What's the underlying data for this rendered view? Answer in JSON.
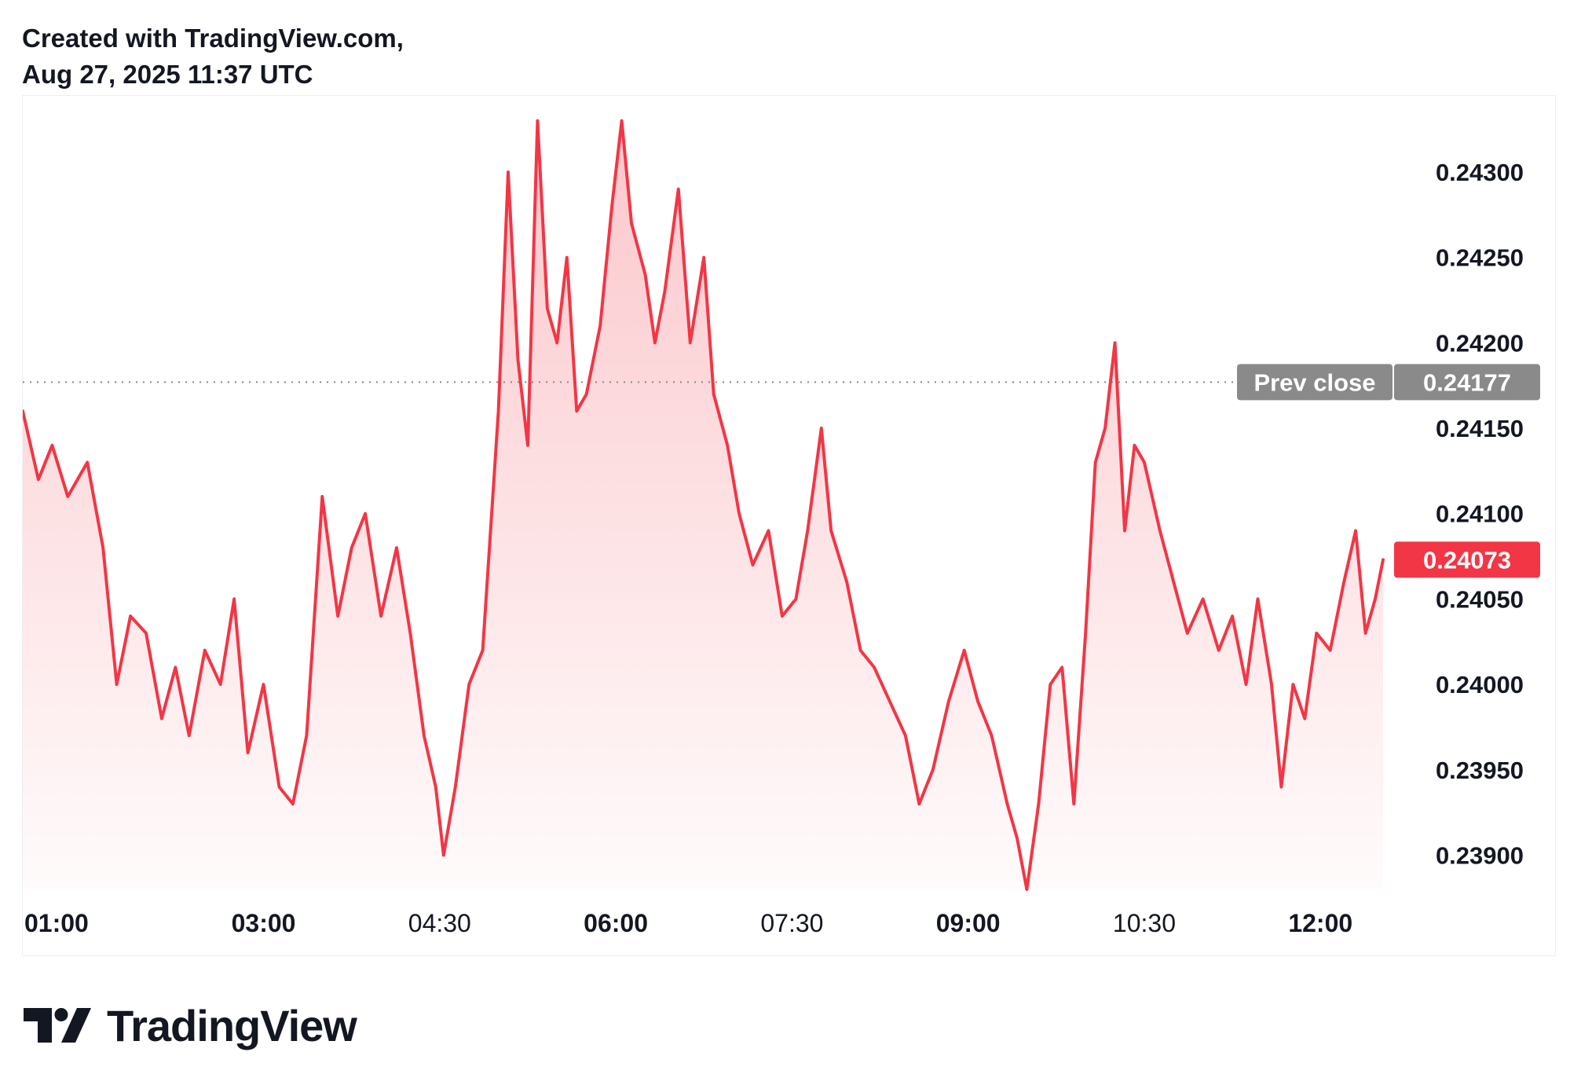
{
  "header": {
    "line1": "Created with TradingView.com,",
    "line2": "Aug 27, 2025 11:37 UTC"
  },
  "brand": {
    "name": "TradingView",
    "icon": "tradingview-logo-icon"
  },
  "colors": {
    "line": "#f23645",
    "prev_close_badge": "#8a8a8a",
    "last_price_badge": "#f23645",
    "text": "#131722"
  },
  "chart_data": {
    "type": "area",
    "x_ticks": [
      {
        "label": "01:00",
        "bold": true,
        "time": "01:00"
      },
      {
        "label": "03:00",
        "bold": true,
        "time": "03:00"
      },
      {
        "label": "04:30",
        "bold": false,
        "time": "04:30"
      },
      {
        "label": "06:00",
        "bold": true,
        "time": "06:00"
      },
      {
        "label": "07:30",
        "bold": false,
        "time": "07:30"
      },
      {
        "label": "09:00",
        "bold": true,
        "time": "09:00"
      },
      {
        "label": "10:30",
        "bold": false,
        "time": "10:30"
      },
      {
        "label": "12:00",
        "bold": true,
        "time": "12:00"
      }
    ],
    "y_ticks": [
      "0.23900",
      "0.23950",
      "0.24000",
      "0.24050",
      "0.24100",
      "0.24150",
      "0.24200",
      "0.24250",
      "0.24300"
    ],
    "ylim": [
      0.2388,
      0.2434
    ],
    "xlim": [
      "00:57",
      "12:32"
    ],
    "prev_close": {
      "label": "Prev close",
      "value": "0.24177"
    },
    "last_price": {
      "value": "0.24073"
    },
    "series": [
      {
        "points": [
          [
            "00:57",
            0.2416
          ],
          [
            "01:05",
            0.2412
          ],
          [
            "01:12",
            0.2414
          ],
          [
            "01:20",
            0.2411
          ],
          [
            "01:30",
            0.2413
          ],
          [
            "01:38",
            0.2408
          ],
          [
            "01:45",
            0.24
          ],
          [
            "01:52",
            0.2404
          ],
          [
            "02:00",
            0.2403
          ],
          [
            "02:08",
            0.2398
          ],
          [
            "02:15",
            0.2401
          ],
          [
            "02:22",
            0.2397
          ],
          [
            "02:30",
            0.2402
          ],
          [
            "02:38",
            0.24
          ],
          [
            "02:45",
            0.2405
          ],
          [
            "02:52",
            0.2396
          ],
          [
            "03:00",
            0.24
          ],
          [
            "03:08",
            0.2394
          ],
          [
            "03:15",
            0.2393
          ],
          [
            "03:22",
            0.2397
          ],
          [
            "03:30",
            0.2411
          ],
          [
            "03:38",
            0.2404
          ],
          [
            "03:45",
            0.2408
          ],
          [
            "03:52",
            0.241
          ],
          [
            "04:00",
            0.2404
          ],
          [
            "04:08",
            0.2408
          ],
          [
            "04:15",
            0.2403
          ],
          [
            "04:22",
            0.2397
          ],
          [
            "04:28",
            0.2394
          ],
          [
            "04:32",
            0.239
          ],
          [
            "04:38",
            0.2394
          ],
          [
            "04:45",
            0.24
          ],
          [
            "04:52",
            0.2402
          ],
          [
            "05:00",
            0.2416
          ],
          [
            "05:05",
            0.243
          ],
          [
            "05:10",
            0.2419
          ],
          [
            "05:15",
            0.2414
          ],
          [
            "05:20",
            0.2433
          ],
          [
            "05:25",
            0.2422
          ],
          [
            "05:30",
            0.242
          ],
          [
            "05:35",
            0.2425
          ],
          [
            "05:40",
            0.2416
          ],
          [
            "05:45",
            0.2417
          ],
          [
            "05:52",
            0.2421
          ],
          [
            "05:58",
            0.2428
          ],
          [
            "06:03",
            0.2433
          ],
          [
            "06:08",
            0.2427
          ],
          [
            "06:15",
            0.2424
          ],
          [
            "06:20",
            0.242
          ],
          [
            "06:25",
            0.2423
          ],
          [
            "06:32",
            0.2429
          ],
          [
            "06:38",
            0.242
          ],
          [
            "06:45",
            0.2425
          ],
          [
            "06:50",
            0.2417
          ],
          [
            "06:57",
            0.2414
          ],
          [
            "07:03",
            0.241
          ],
          [
            "07:10",
            0.2407
          ],
          [
            "07:18",
            0.2409
          ],
          [
            "07:25",
            0.2404
          ],
          [
            "07:32",
            0.2405
          ],
          [
            "07:38",
            0.2409
          ],
          [
            "07:45",
            0.2415
          ],
          [
            "07:50",
            0.2409
          ],
          [
            "07:58",
            0.2406
          ],
          [
            "08:05",
            0.2402
          ],
          [
            "08:12",
            0.2401
          ],
          [
            "08:20",
            0.2399
          ],
          [
            "08:28",
            0.2397
          ],
          [
            "08:35",
            0.2393
          ],
          [
            "08:42",
            0.2395
          ],
          [
            "08:50",
            0.2399
          ],
          [
            "08:58",
            0.2402
          ],
          [
            "09:05",
            0.2399
          ],
          [
            "09:12",
            0.2397
          ],
          [
            "09:20",
            0.2393
          ],
          [
            "09:25",
            0.2391
          ],
          [
            "09:30",
            0.2388
          ],
          [
            "09:36",
            0.2393
          ],
          [
            "09:42",
            0.24
          ],
          [
            "09:48",
            0.2401
          ],
          [
            "09:54",
            0.2393
          ],
          [
            "10:00",
            0.2403
          ],
          [
            "10:05",
            0.2413
          ],
          [
            "10:10",
            0.2415
          ],
          [
            "10:15",
            0.242
          ],
          [
            "10:20",
            0.2409
          ],
          [
            "10:25",
            0.2414
          ],
          [
            "10:30",
            0.2413
          ],
          [
            "10:38",
            0.2409
          ],
          [
            "10:45",
            0.2406
          ],
          [
            "10:52",
            0.2403
          ],
          [
            "11:00",
            0.2405
          ],
          [
            "11:08",
            0.2402
          ],
          [
            "11:15",
            0.2404
          ],
          [
            "11:22",
            0.24
          ],
          [
            "11:28",
            0.2405
          ],
          [
            "11:35",
            0.24
          ],
          [
            "11:40",
            0.2394
          ],
          [
            "11:46",
            0.24
          ],
          [
            "11:52",
            0.2398
          ],
          [
            "11:58",
            0.2403
          ],
          [
            "12:05",
            0.2402
          ],
          [
            "12:12",
            0.2406
          ],
          [
            "12:18",
            0.2409
          ],
          [
            "12:23",
            0.2403
          ],
          [
            "12:28",
            0.2405
          ],
          [
            "12:32",
            0.24073
          ]
        ]
      }
    ],
    "grid": false
  }
}
